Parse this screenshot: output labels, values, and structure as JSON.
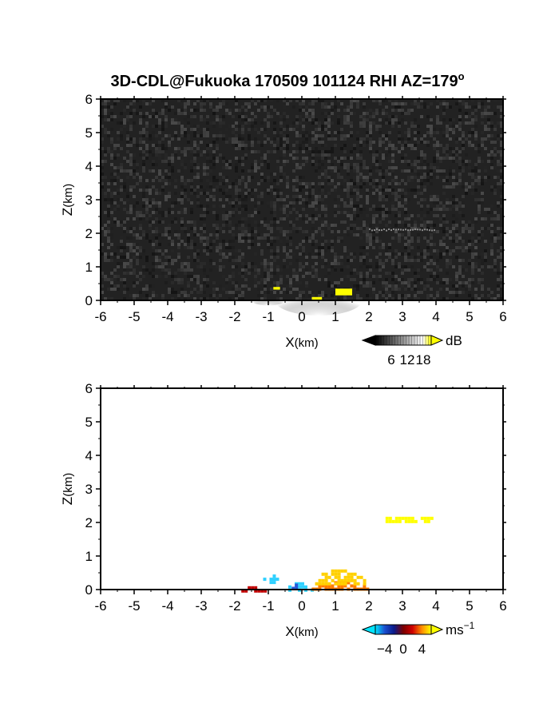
{
  "title": "3D-CDL@Fukuoka 170509 101124 RHI AZ=179",
  "title_superscript": "o",
  "chart_data": [
    {
      "type": "heatmap",
      "name": "reflectivity",
      "xlabel_main": "X",
      "xlabel_unit": "(km)",
      "ylabel_main": "Z",
      "ylabel_unit": "(km)",
      "xlim": [
        -6,
        6
      ],
      "ylim": [
        0,
        6
      ],
      "xticks": [
        "-6",
        "-5",
        "-4",
        "-3",
        "-2",
        "-1",
        "0",
        "1",
        "2",
        "3",
        "4",
        "5",
        "6"
      ],
      "yticks": [
        "0",
        "1",
        "2",
        "3",
        "4",
        "5",
        "6"
      ],
      "background": "noise (dark gray)",
      "colorbar": {
        "unit": "dB",
        "ticks": [
          "6",
          "12",
          "18"
        ],
        "tick_values": [
          6,
          12,
          18
        ],
        "range": [
          0,
          21
        ],
        "colors": [
          "#000000",
          "#ffffff",
          "#ffff00"
        ]
      },
      "features": [
        {
          "kind": "echo",
          "x": [
            -0.8,
            1.8
          ],
          "z": [
            0,
            0.45
          ],
          "level_db": "12-18"
        },
        {
          "kind": "echo",
          "x": [
            -1.5,
            -0.5
          ],
          "z": [
            0,
            0.15
          ],
          "level_db": "6-12"
        },
        {
          "kind": "layer",
          "x": [
            2.0,
            4.0
          ],
          "z": [
            2.05,
            2.15
          ],
          "level_db": "6"
        },
        {
          "kind": "saturated",
          "x": [
            -0.85,
            -0.65
          ],
          "z": [
            0.32,
            0.4
          ],
          "color": "#ffff00"
        },
        {
          "kind": "saturated",
          "x": [
            0.3,
            0.6
          ],
          "z": [
            0.02,
            0.1
          ],
          "color": "#ffff00"
        },
        {
          "kind": "saturated",
          "x": [
            1.0,
            1.5
          ],
          "z": [
            0.15,
            0.35
          ],
          "color": "#ffff00"
        }
      ]
    },
    {
      "type": "heatmap",
      "name": "doppler_velocity",
      "xlabel_main": "X",
      "xlabel_unit": "(km)",
      "ylabel_main": "Z",
      "ylabel_unit": "(km)",
      "xlim": [
        -6,
        6
      ],
      "ylim": [
        0,
        6
      ],
      "xticks": [
        "-6",
        "-5",
        "-4",
        "-3",
        "-2",
        "-1",
        "0",
        "1",
        "2",
        "3",
        "4",
        "5",
        "6"
      ],
      "yticks": [
        "0",
        "1",
        "2",
        "3",
        "4",
        "5",
        "6"
      ],
      "colorbar": {
        "unit_main": "ms",
        "unit_exp": "−1",
        "ticks": [
          "−4",
          "0",
          "4"
        ],
        "tick_values": [
          -4,
          0,
          4
        ],
        "range": [
          -6,
          6
        ],
        "colors": [
          "#00e5ff",
          "#1a4fcf",
          "#0a1a8a",
          "#7a0000",
          "#d00000",
          "#ff8c00",
          "#ffff00"
        ]
      },
      "features": [
        {
          "kind": "patch",
          "x": [
            -1.25,
            -0.6
          ],
          "z": [
            0.25,
            0.45
          ],
          "velocity": -3.5,
          "color": "#2fd0ff"
        },
        {
          "kind": "patch",
          "x": [
            -0.5,
            0.3
          ],
          "z": [
            0.0,
            0.22
          ],
          "velocity": -2.5,
          "color": "#2fd0ff"
        },
        {
          "kind": "patch",
          "x": [
            -0.4,
            0.0
          ],
          "z": [
            0.0,
            0.18
          ],
          "velocity": -1.5,
          "color": "#2a56d6"
        },
        {
          "kind": "patch",
          "x": [
            -1.9,
            -1.1
          ],
          "z": [
            0.0,
            0.1
          ],
          "velocity": 0.5,
          "color": "#c00000"
        },
        {
          "kind": "patch",
          "x": [
            0.2,
            2.0
          ],
          "z": [
            0.0,
            0.25
          ],
          "velocity": 2.5,
          "color": "#ff7a00"
        },
        {
          "kind": "patch",
          "x": [
            0.3,
            1.9
          ],
          "z": [
            0.15,
            0.6
          ],
          "velocity": 4.5,
          "color": "#ffd000"
        },
        {
          "kind": "layer",
          "x": [
            2.4,
            3.9
          ],
          "z": [
            2.05,
            2.17
          ],
          "velocity": 5,
          "color": "#ffff00"
        }
      ]
    }
  ]
}
